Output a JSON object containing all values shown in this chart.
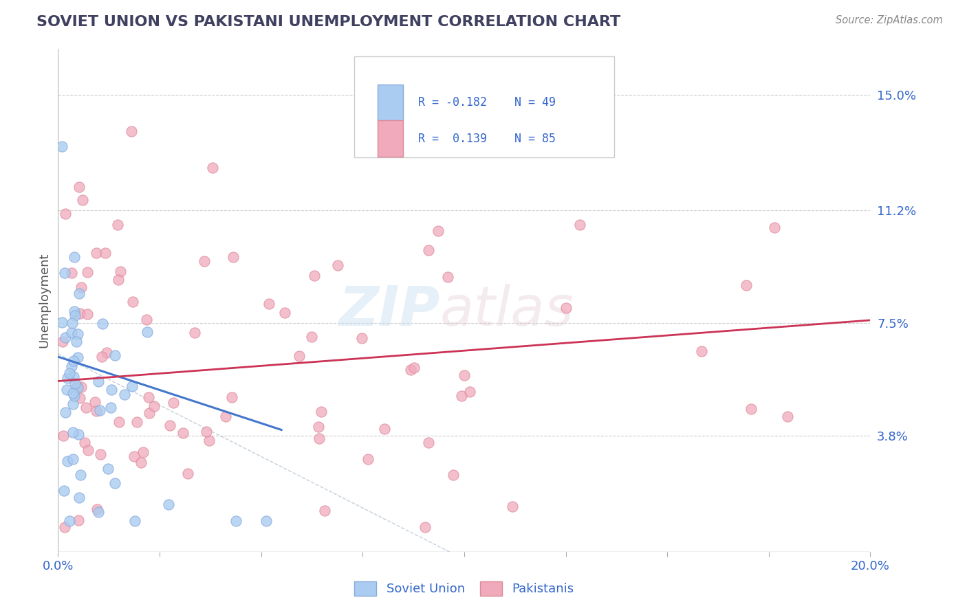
{
  "title": "SOVIET UNION VS PAKISTANI UNEMPLOYMENT CORRELATION CHART",
  "source_text": "Source: ZipAtlas.com",
  "ylabel": "Unemployment",
  "yticks": [
    0.038,
    0.075,
    0.112,
    0.15
  ],
  "ytick_labels": [
    "3.8%",
    "7.5%",
    "11.2%",
    "15.0%"
  ],
  "xticks": [
    0.0,
    0.025,
    0.05,
    0.075,
    0.1,
    0.125,
    0.15,
    0.175,
    0.2
  ],
  "xmin": 0.0,
  "xmax": 0.2,
  "ymin": 0.0,
  "ymax": 0.165,
  "soviet_color": "#aaccf0",
  "soviet_edge_color": "#88aadd",
  "pakistani_color": "#f0aabb",
  "pakistani_edge_color": "#dd8899",
  "soviet_R": -0.182,
  "soviet_N": 49,
  "pakistani_R": 0.139,
  "pakistani_N": 85,
  "trend_soviet_color": "#4477cc",
  "trend_pakistani_color": "#cc3355",
  "trend_diagonal_color": "#aabbcc",
  "watermark_zip": "ZIP",
  "watermark_atlas": "atlas",
  "legend_text_color": "#3366cc",
  "title_color": "#404060",
  "background_color": "#ffffff",
  "grid_color": "#cccccc",
  "legend_R1": "R = -0.182",
  "legend_N1": "N = 49",
  "legend_R2": "R =  0.139",
  "legend_N2": "N = 85",
  "soviet_label": "Soviet Union",
  "pakistani_label": "Pakistanis"
}
